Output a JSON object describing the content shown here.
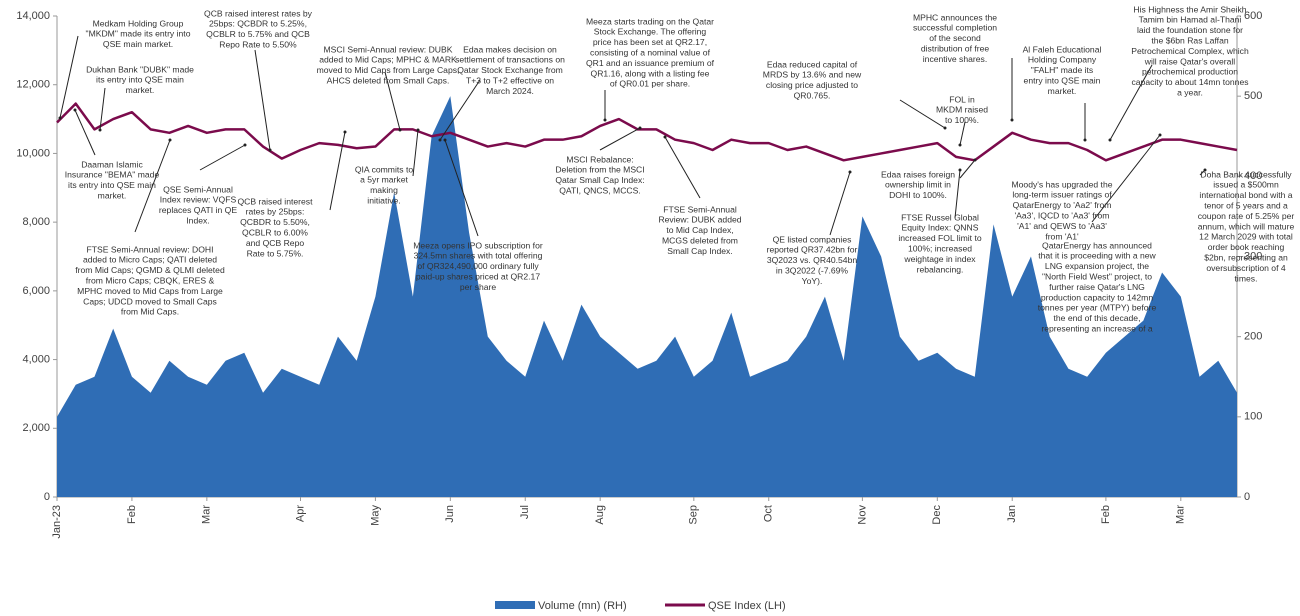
{
  "chart_data": {
    "type": "area-line",
    "categories": [
      "Jan-23",
      null,
      null,
      null,
      "Feb",
      null,
      null,
      null,
      "Mar",
      null,
      null,
      null,
      null,
      "Apr",
      null,
      null,
      null,
      "May",
      null,
      null,
      null,
      "Jun",
      null,
      null,
      null,
      "Jul",
      null,
      null,
      null,
      "Aug",
      null,
      null,
      null,
      null,
      "Sep",
      null,
      null,
      null,
      "Oct",
      null,
      null,
      null,
      null,
      "Nov",
      null,
      null,
      null,
      "Dec",
      null,
      null,
      null,
      "Jan",
      null,
      null,
      null,
      null,
      "Feb",
      null,
      null,
      null,
      "Mar",
      null,
      null,
      null
    ],
    "series": [
      {
        "name": "Volume (mn) (RH)",
        "color": "#2f6db5",
        "axis": "y2",
        "kind": "area",
        "values": [
          100,
          140,
          150,
          210,
          150,
          130,
          170,
          150,
          140,
          170,
          180,
          130,
          160,
          150,
          140,
          200,
          170,
          250,
          380,
          250,
          450,
          500,
          330,
          200,
          170,
          150,
          220,
          170,
          240,
          200,
          180,
          160,
          170,
          200,
          150,
          170,
          230,
          150,
          160,
          170,
          200,
          250,
          170,
          350,
          300,
          200,
          170,
          180,
          160,
          150,
          340,
          250,
          300,
          200,
          160,
          150,
          180,
          200,
          220,
          280,
          250,
          150,
          170,
          130
        ]
      },
      {
        "name": "QSE Index (LH)",
        "color": "#7b0b4c",
        "kind": "line",
        "values": [
          10900,
          11450,
          10700,
          11000,
          11200,
          10700,
          10600,
          10800,
          10600,
          10700,
          10700,
          10200,
          9850,
          10100,
          10300,
          10250,
          10150,
          10200,
          10700,
          10700,
          10500,
          10600,
          10400,
          10200,
          10300,
          10200,
          10400,
          10400,
          10500,
          10800,
          11000,
          10700,
          10700,
          10400,
          10300,
          10100,
          10400,
          10300,
          10300,
          10100,
          10200,
          10000,
          9800,
          9900,
          10000,
          10100,
          10200,
          10300,
          9900,
          9800,
          10200,
          10600,
          10400,
          10300,
          10300,
          10100,
          9800,
          10000,
          10200,
          10400,
          10400,
          10300,
          10200,
          10100
        ]
      }
    ],
    "ylim": [
      0,
      14000
    ],
    "yticks": [
      {
        "value": 0,
        "label": "0"
      },
      {
        "value": 2000,
        "label": "2,000"
      },
      {
        "value": 4000,
        "label": "4,000"
      },
      {
        "value": 6000,
        "label": "6,000"
      },
      {
        "value": 8000,
        "label": "8,000"
      },
      {
        "value": 10000,
        "label": "10,000"
      },
      {
        "value": 12000,
        "label": "12,000"
      },
      {
        "value": 14000,
        "label": "14,000"
      }
    ],
    "y2lim": [
      0,
      600
    ],
    "y2ticks": [
      0,
      100,
      200,
      300,
      400,
      500,
      600
    ],
    "legend": "bottom",
    "annotations": [
      [
        "Medkam Holding Group",
        "\"MKDM\" made its entry into",
        "QSE main market."
      ],
      [
        "Dukhan Bank \"DUBK\" made",
        "its entry into QSE main",
        "market."
      ],
      [
        "Daaman Islamic",
        "Insurance \"BEMA\" made",
        "its entry into QSE main",
        "market."
      ],
      [
        "QSE Semi-Annual",
        "Index review: VQFS",
        "replaces QATI in QE",
        "Index."
      ],
      [
        "FTSE Semi-Annual review: DOHI",
        "added to Micro Caps; QATI deleted",
        "from Mid Caps; QGMD & QLMI deleted",
        "from Micro Caps; CBQK, ERES &",
        "MPHC moved to Mid Caps from Large",
        "Caps; UDCD moved to Small Caps",
        "from Mid Caps."
      ],
      [
        "QCB raised interest rates by",
        "25bps: QCBDR to 5.25%,",
        "QCBLR to 5.75% and QCB",
        "Repo Rate to 5.50%"
      ],
      [
        "QCB raised interest",
        "rates by 25bps:",
        "QCBDR to 5.50%,",
        "QCBLR to 6.00%",
        "and QCB Repo",
        "Rate to 5.75%."
      ],
      [
        "MSCI Semi-Annual review: DUBK",
        "added to Mid Caps; MPHC & MARK",
        "moved to Mid Caps from Large Caps;",
        "AHCS deleted  from Small Caps."
      ],
      [
        "QIA commits to",
        "a 5yr market",
        "making",
        "initiative."
      ],
      [
        "Meeza opens IPO subscription for",
        "324.5mn shares with total offering",
        "of QR324,490,000 ordinary fully",
        "paid-up shares priced at QR2.17",
        "per share"
      ],
      [
        "Edaa makes decision on",
        "settlement of transactions on",
        "Qatar Stock Exchange from",
        "T+3 to T+2 effective on",
        "March 2024."
      ],
      [
        "Meeza starts trading on the Qatar",
        "Stock Exchange. The offering",
        "price has been set at QR2.17,",
        "consisting of a nominal value of",
        "QR1 and an issuance premium of",
        "QR1.16, along with a listing fee",
        "of QR0.01 per share."
      ],
      [
        "MSCI Rebalance:",
        "Deletion from the MSCI",
        "Qatar Small Cap Index:",
        "QATI, QNCS, MCCS."
      ],
      [
        "FTSE Semi-Annual",
        "Review: DUBK added",
        "to Mid Cap Index,",
        "MCGS deleted from",
        "Small Cap Index."
      ],
      [
        "Edaa reduced capital of",
        "MRDS by 13.6% and new",
        "closing price adjusted to",
        "QR0.765."
      ],
      [
        "QE listed companies",
        "reported QR37.42bn for",
        "3Q2023 vs. QR40.54bn",
        "in 3Q2022 (-7.69%",
        "YoY)."
      ],
      [
        "Edaa raises foreign",
        "ownership limit in",
        "DOHI to 100%."
      ],
      [
        "FTSE Russel Global",
        "Equity Index: QNNS",
        "increased FOL limit to",
        "100%; increased",
        "weightage in index",
        "rebalancing."
      ],
      [
        "FOL in",
        "MKDM raised",
        "to 100%."
      ],
      [
        "MPHC announces the",
        "successful completion",
        "of the second",
        "distribution of free",
        "incentive shares."
      ],
      [
        "Al Faleh Educational",
        "Holding Company",
        "\"FALH\" made its",
        "entry into QSE main",
        "market."
      ],
      [
        "His Highness the Amir Sheikh",
        "Tamim bin Hamad al-Thani",
        "laid the foundation stone for",
        "the $6bn Ras Laffan",
        "Petrochemical Complex, which",
        "will raise Qatar's overall",
        "petrochemical production",
        "capacity to about 14mn tonnes",
        "a year."
      ],
      [
        "Moody's has upgraded the",
        "long-term issuer ratings of",
        "QatarEnergy to 'Aa2' from",
        "'Aa3', IQCD to 'Aa3' from",
        "'A1' and QEWS to 'Aa3'",
        "from 'A1'"
      ],
      [
        "QatarEnergy has announced",
        "that it is proceeding with a new",
        "LNG expansion project, the",
        "\"North Field West\" project, to",
        "further raise Qatar's LNG",
        "production capacity to 142mn",
        "tonnes per year (MTPY) before",
        "the end of this decade,",
        "representing an increase of a"
      ],
      [
        "Doha Bank successfully",
        "issued a $500mn",
        "international bond with a",
        "tenor of 5 years and a",
        "coupon rate of 5.25% per",
        "annum, which will mature",
        "12 March 2029 with total",
        "order book reaching",
        "$2bn, representing an",
        "oversubscription of 4",
        "times."
      ]
    ]
  }
}
